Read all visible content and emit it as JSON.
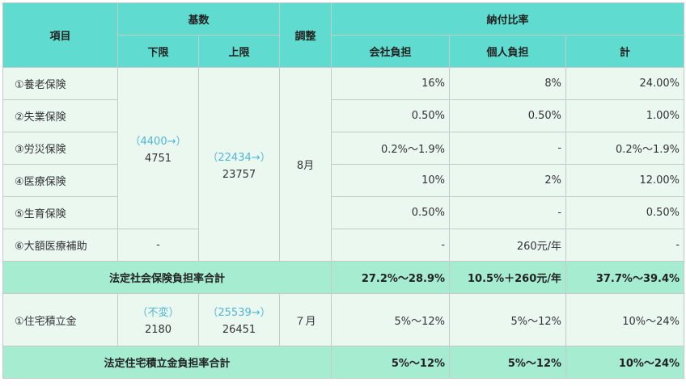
{
  "header": {
    "item": "項目",
    "base": "基数",
    "adjust": "調整",
    "ratio": "納付比率",
    "lower": "下限",
    "upper": "上限",
    "company": "会社負担",
    "personal": "個人負担",
    "total": "計"
  },
  "social": {
    "rows": [
      {
        "item": "①養老保険",
        "company": "16%",
        "personal": "8%",
        "total": "24.00%"
      },
      {
        "item": "②失業保険",
        "company": "0.50%",
        "personal": "0.50%",
        "total": "1.00%"
      },
      {
        "item": "③労災保険",
        "company": "0.2%～1.9%",
        "personal": "-",
        "total": "0.2%～1.9%"
      },
      {
        "item": "④医療保険",
        "company": "10%",
        "personal": "2%",
        "total": "12.00%"
      },
      {
        "item": "⑤生育保険",
        "company": "0.50%",
        "personal": "-",
        "total": "0.50%"
      },
      {
        "item": "⑥大額医療補助",
        "lower": "-",
        "company": "-",
        "personal": "260元/年",
        "total": "-"
      }
    ],
    "lower_old": "（4400→）",
    "lower_new": "4751",
    "upper_old": "（22434→）",
    "upper_new": "23757",
    "adjust": "8月",
    "sum": {
      "label": "法定社会保険負担率合計",
      "company": "27.2%～28.9%",
      "personal": "10.5%＋260元/年",
      "total": "37.7%～39.4%"
    }
  },
  "housing": {
    "item": "①住宅積立金",
    "lower_old": "（不変）",
    "lower_new": "2180",
    "upper_old": "（25539→）",
    "upper_new": "26451",
    "adjust": "７月",
    "company": "5%～12%",
    "personal": "5%～12%",
    "total": "10%～24%",
    "sum": {
      "label": "法定住宅積立金負担率合計",
      "company": "5%～12%",
      "personal": "5%～12%",
      "total": "10%～24%"
    }
  }
}
